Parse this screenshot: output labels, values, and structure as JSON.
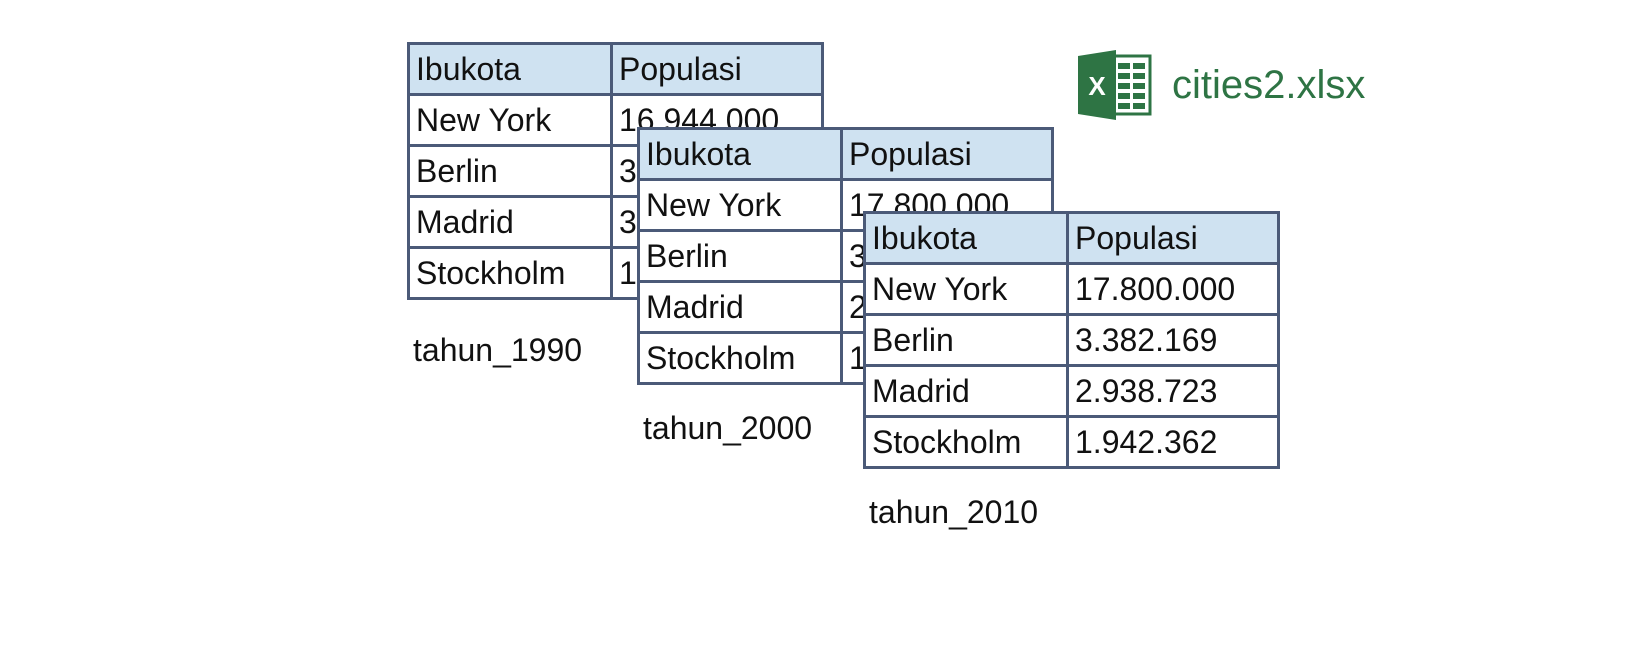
{
  "file": {
    "name": "cities2.xlsx",
    "icon": "excel-icon",
    "color": "#2e7444"
  },
  "headers": [
    "Ibukota",
    "Populasi"
  ],
  "sheets": [
    {
      "label": "tahun_1990",
      "rows": [
        [
          "New York",
          "16.944.000"
        ],
        [
          "Berlin",
          "3"
        ],
        [
          "Madrid",
          "3"
        ],
        [
          "Stockholm",
          "1"
        ]
      ]
    },
    {
      "label": "tahun_2000",
      "rows": [
        [
          "New York",
          "17.800.000"
        ],
        [
          "Berlin",
          "3"
        ],
        [
          "Madrid",
          "2"
        ],
        [
          "Stockholm",
          "1"
        ]
      ]
    },
    {
      "label": "tahun_2010",
      "rows": [
        [
          "New York",
          "17.800.000"
        ],
        [
          "Berlin",
          "3.382.169"
        ],
        [
          "Madrid",
          "2.938.723"
        ],
        [
          "Stockholm",
          "1.942.362"
        ]
      ]
    }
  ]
}
